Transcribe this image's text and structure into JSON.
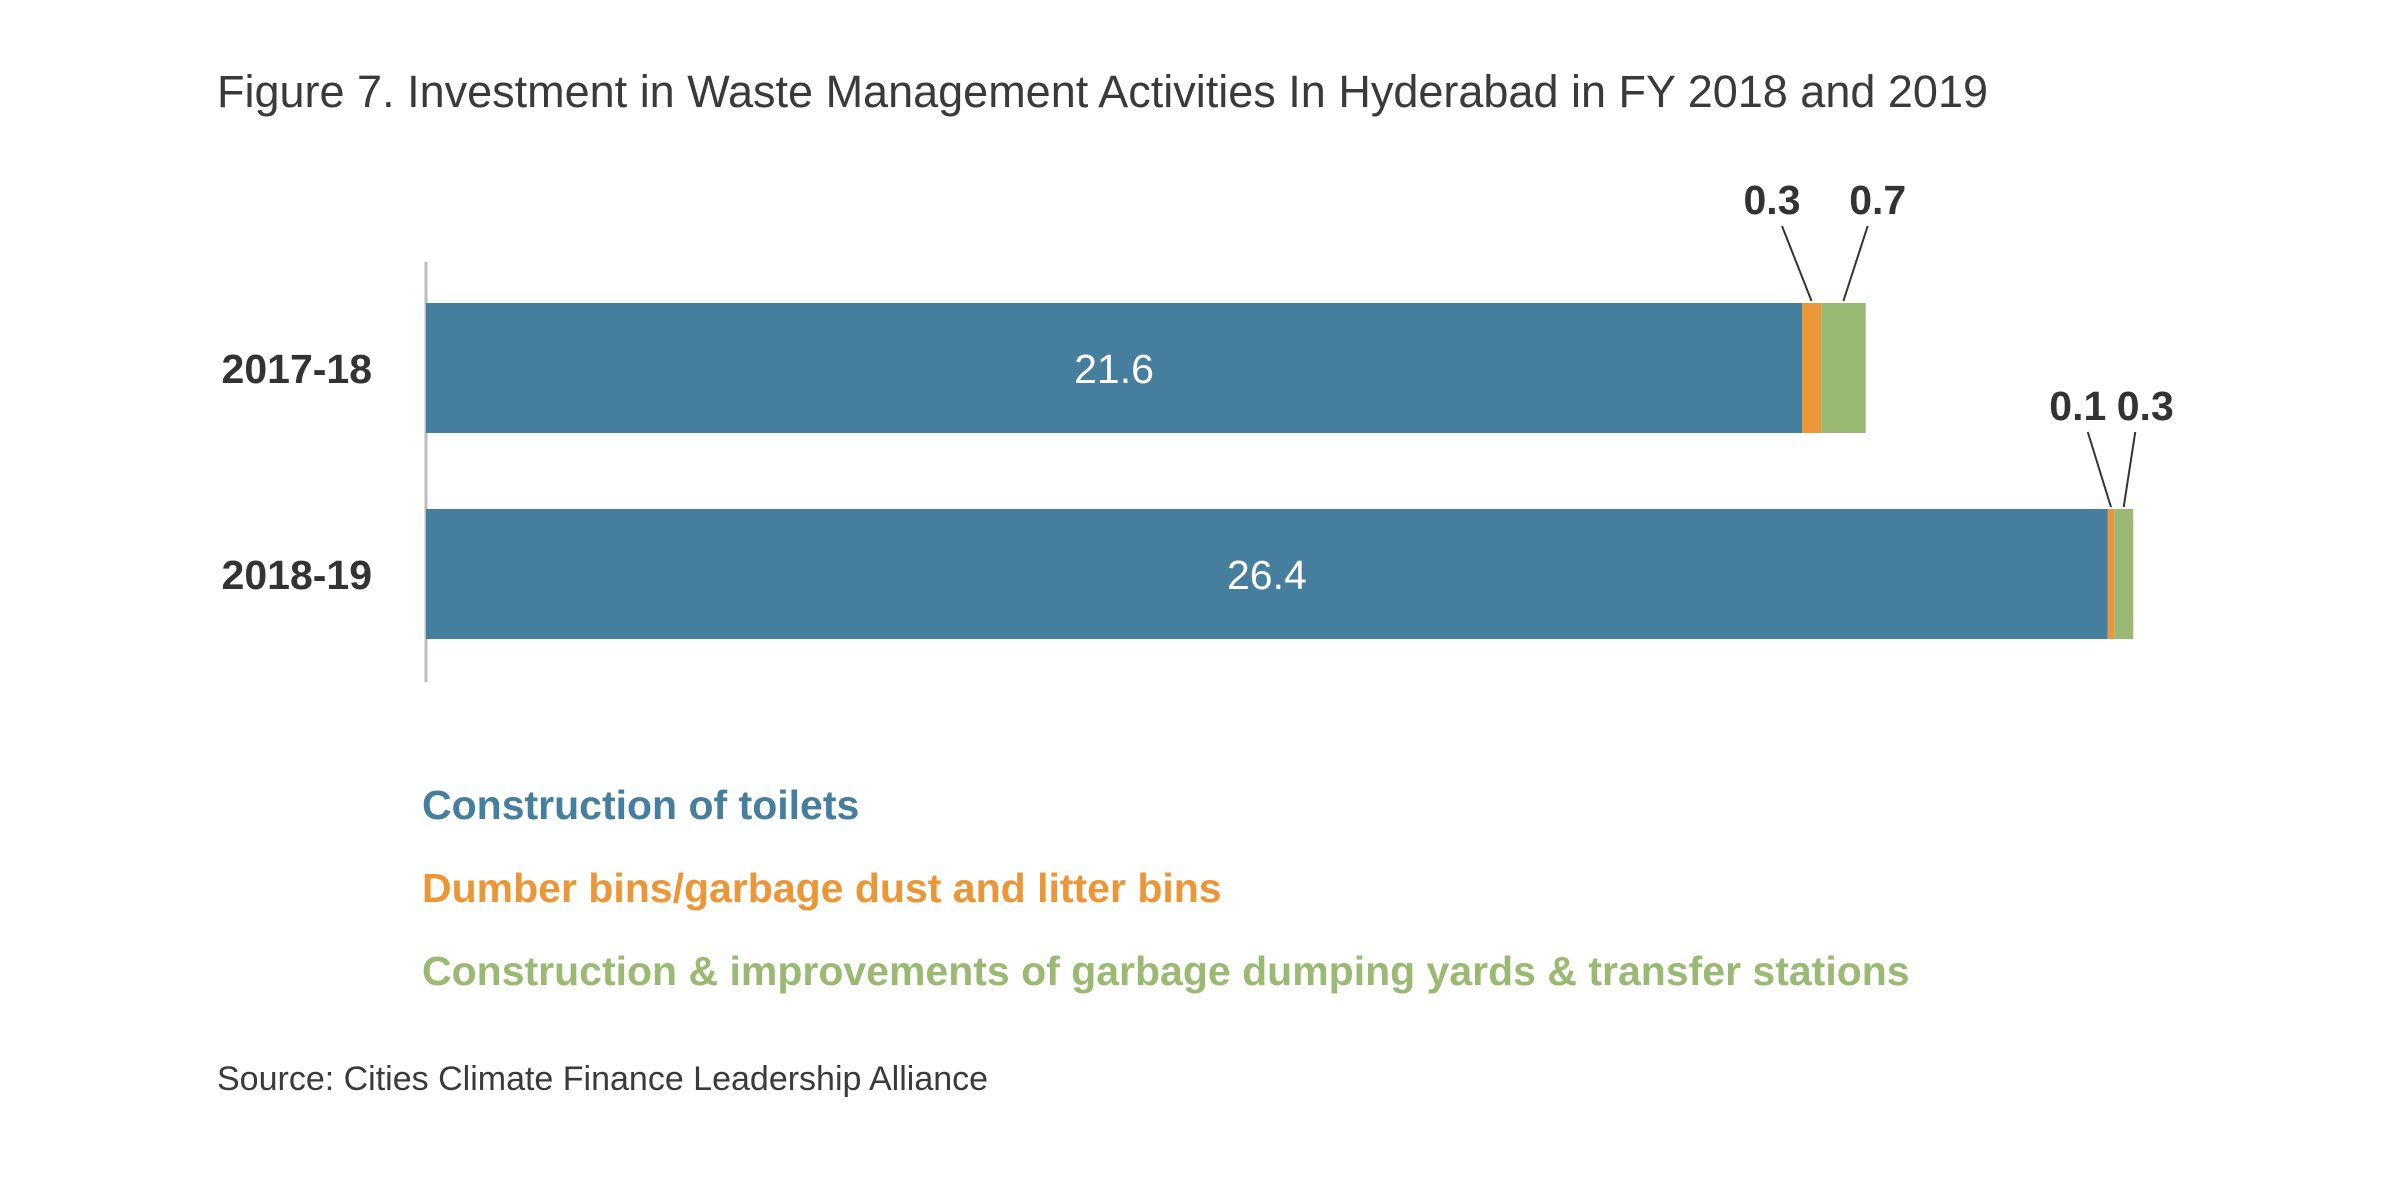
{
  "title": "Figure 7. Investment in Waste Management Activities In Hyderabad in FY 2018 and 2019",
  "source": "Source: Cities Climate Finance Leadership Alliance",
  "chart_data": {
    "type": "bar",
    "orientation": "horizontal",
    "stacked": true,
    "title": "Figure 7. Investment in Waste Management Activities In Hyderabad in FY 2018 and 2019",
    "xlabel": "",
    "ylabel": "",
    "categories": [
      "2017-18",
      "2018-19"
    ],
    "xlim": [
      0,
      27
    ],
    "grid": false,
    "legend_position": "bottom",
    "series": [
      {
        "name": "Construction of toilets",
        "color": "#467e9e",
        "values": [
          21.6,
          26.4
        ],
        "labels": [
          "21.6",
          "26.4"
        ]
      },
      {
        "name": "Dumber bins/garbage dust and litter bins",
        "color": "#ec9737",
        "values": [
          0.3,
          0.1
        ],
        "labels": [
          "0.3",
          "0.1"
        ]
      },
      {
        "name": "Construction & improvements of garbage dumping yards & transfer stations",
        "color": "#9aba73",
        "values": [
          0.7,
          0.3
        ],
        "labels": [
          "0.7",
          "0.3"
        ]
      }
    ]
  }
}
